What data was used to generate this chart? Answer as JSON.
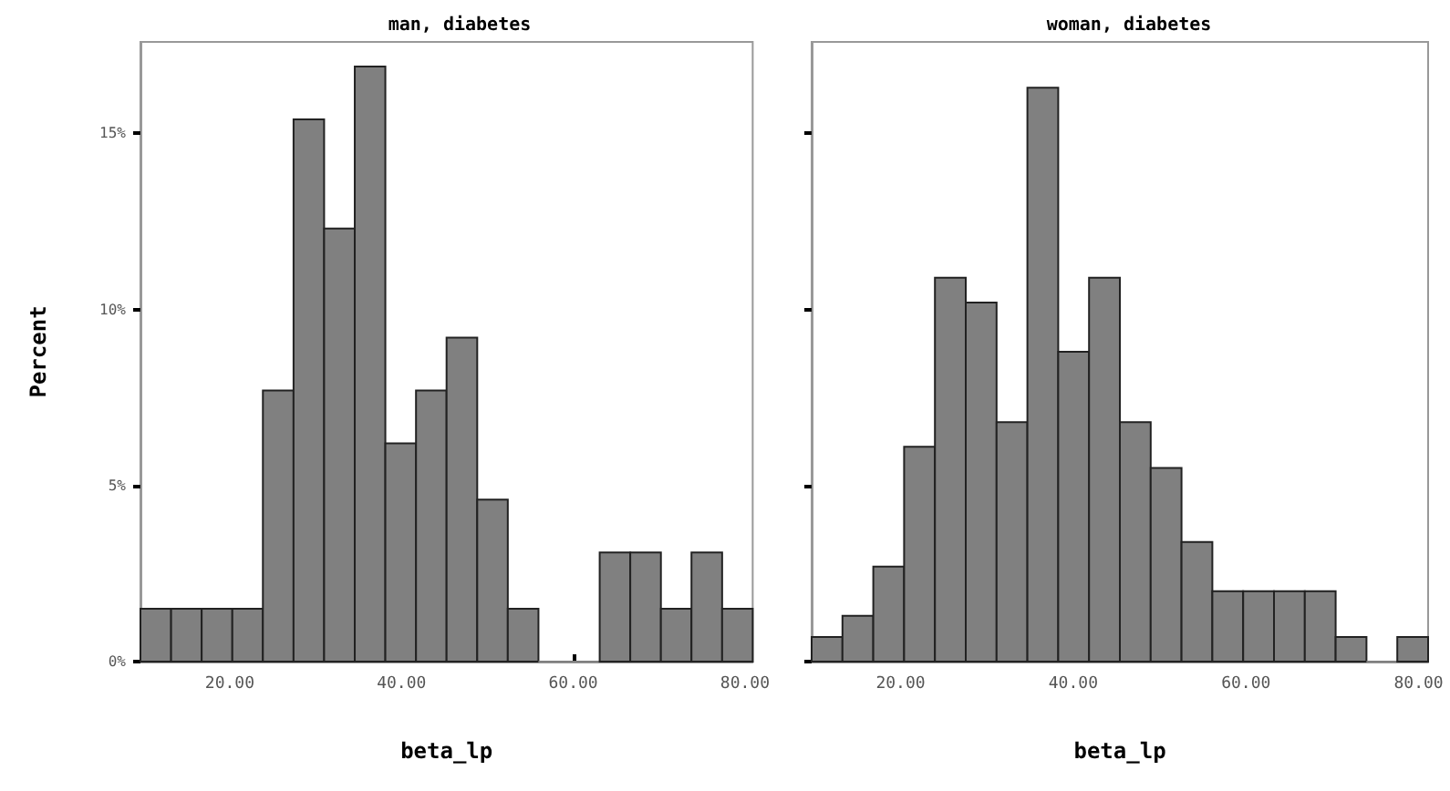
{
  "chart_data": [
    {
      "type": "histogram",
      "title": "man, diabetes",
      "xlabel": "beta_lp",
      "ylabel": "Percent",
      "color": "#808080",
      "bins": [
        9.6,
        13.17,
        16.73,
        20.3,
        23.86,
        27.43,
        30.99,
        34.56,
        38.12,
        41.69,
        45.25,
        48.82,
        52.38,
        55.95,
        59.51,
        63.08,
        66.64,
        70.21,
        73.77,
        77.34,
        80.9
      ],
      "values": [
        1.5,
        1.5,
        1.5,
        1.5,
        7.7,
        15.4,
        12.3,
        16.9,
        6.2,
        7.7,
        9.2,
        4.6,
        1.5,
        0,
        0,
        3.1,
        3.1,
        1.5,
        3.1,
        1.5
      ],
      "xlim": [
        9.6,
        80.9
      ],
      "xticks": [
        {
          "value": 20,
          "label": "20.00"
        },
        {
          "value": 40,
          "label": "40.00"
        },
        {
          "value": 60,
          "label": "60.00"
        },
        {
          "value": 80,
          "label": "80.00"
        }
      ],
      "ylim": [
        0,
        17.6
      ],
      "yticks": [
        {
          "value": 0,
          "label": "0%"
        },
        {
          "value": 5,
          "label": "5%"
        },
        {
          "value": 10,
          "label": "10%"
        },
        {
          "value": 15,
          "label": "15%"
        }
      ],
      "grid": false
    },
    {
      "type": "histogram",
      "title": "woman, diabetes",
      "xlabel": "beta_lp",
      "color": "#808080",
      "bins": [
        9.7,
        13.27,
        16.84,
        20.41,
        23.98,
        27.55,
        31.12,
        34.69,
        38.26,
        41.83,
        45.4,
        48.97,
        52.54,
        56.11,
        59.68,
        63.25,
        66.82,
        70.39,
        73.96,
        77.53,
        81.1
      ],
      "values": [
        0.7,
        1.3,
        2.7,
        6.1,
        10.9,
        10.2,
        6.8,
        16.3,
        8.8,
        10.9,
        6.8,
        5.5,
        3.4,
        2.0,
        2.0,
        2.0,
        2.0,
        0.7,
        0,
        0.7
      ],
      "xlim": [
        9.7,
        81.1
      ],
      "xticks": [
        {
          "value": 20,
          "label": "20.00"
        },
        {
          "value": 40,
          "label": "40.00"
        },
        {
          "value": 60,
          "label": "60.00"
        },
        {
          "value": 80,
          "label": "80.00"
        }
      ],
      "ylim": [
        0,
        17.6
      ],
      "yticks": [
        {
          "value": 0,
          "label": null
        },
        {
          "value": 5,
          "label": null
        },
        {
          "value": 10,
          "label": null
        },
        {
          "value": 15,
          "label": null
        }
      ],
      "grid": false,
      "tick_labels": "x"
    }
  ]
}
